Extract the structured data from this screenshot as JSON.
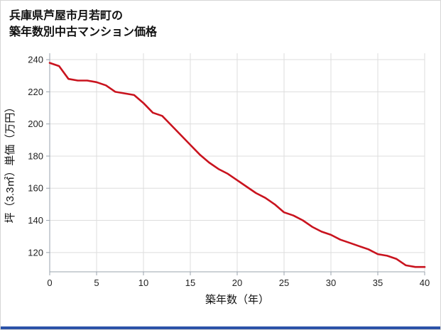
{
  "title": {
    "line1": "兵庫県芦屋市月若町の",
    "line2": "築年数別中古マンション価格"
  },
  "colors": {
    "line": "#c9131e",
    "grid": "#dddddd",
    "axis": "#9aa3ad",
    "tick_text": "#222222",
    "label_text": "#111111",
    "title_text": "#111111",
    "footer_bar": "#2b52a8",
    "background": "#ffffff"
  },
  "chart_data": {
    "type": "line",
    "title": "兵庫県芦屋市月若町の 築年数別中古マンション価格",
    "xlabel": "築年数（年）",
    "ylabel": "坪（3.3㎡）単価（万円）",
    "x": [
      0,
      1,
      2,
      3,
      4,
      5,
      6,
      7,
      8,
      9,
      10,
      11,
      12,
      13,
      14,
      15,
      16,
      17,
      18,
      19,
      20,
      21,
      22,
      23,
      24,
      25,
      26,
      27,
      28,
      29,
      30,
      31,
      32,
      33,
      34,
      35,
      36,
      37,
      38,
      39,
      40
    ],
    "values": [
      238,
      236,
      228,
      227,
      227,
      226,
      224,
      220,
      219,
      218,
      213,
      207,
      205,
      199,
      193,
      187,
      181,
      176,
      172,
      169,
      165,
      161,
      157,
      154,
      150,
      145,
      143,
      140,
      136,
      133,
      131,
      128,
      126,
      124,
      122,
      119,
      118,
      116,
      112,
      111,
      111
    ],
    "xticks": [
      0,
      5,
      10,
      15,
      20,
      25,
      30,
      35,
      40
    ],
    "yticks": [
      120,
      140,
      160,
      180,
      200,
      220,
      240
    ],
    "xlim": [
      0,
      40
    ],
    "ylim": [
      108,
      244
    ],
    "grid": true,
    "legend": "none"
  }
}
